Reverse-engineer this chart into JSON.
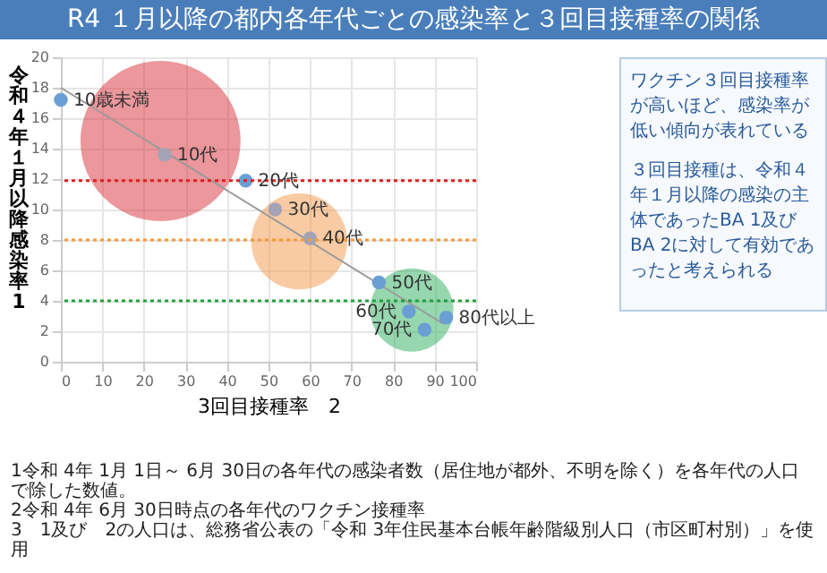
{
  "chart_data": {
    "type": "scatter",
    "title": "R4 １月以降の都内各年代ごとの感染率と３回目接種率の関係",
    "xlabel": "3回目接種率　2",
    "ylabel": "令和４年１月以降感染率 1",
    "xlim": [
      0,
      100
    ],
    "ylim": [
      0,
      20
    ],
    "xticks": [
      0,
      10,
      20,
      30,
      40,
      50,
      60,
      70,
      80,
      90,
      100
    ],
    "yticks": [
      0,
      2,
      4,
      6,
      8,
      10,
      12,
      14,
      16,
      18,
      20
    ],
    "grid": true,
    "marker": "circle",
    "series": [
      {
        "type": "bubble",
        "x": [
          24,
          57.4,
          84.5
        ],
        "values": [
          14.5,
          7.9,
          3.4
        ],
        "sizes": [
          1,
          0.36,
          0.27
        ],
        "colors": [
          "#d8303a",
          "#f4984a",
          "#2fb060"
        ]
      },
      {
        "type": "line",
        "x": [
          0,
          92
        ],
        "values": [
          18,
          2.5
        ],
        "color": "#9a9a9a",
        "marker": "none"
      },
      {
        "type": "scatter",
        "x": [
          0,
          25,
          44.5,
          51.6,
          60,
          76.6,
          83.8,
          87.6,
          92.8
        ],
        "values": [
          17.2,
          13.6,
          11.9,
          10,
          8.1,
          5.2,
          3.3,
          2.1,
          2.9
        ],
        "colors": [
          "#6a9fd4",
          "#a3a3b5",
          "#6a9fd4",
          "#a3a3b5",
          "#a3a3b5",
          "#6a9fd4",
          "#6a9fd4",
          "#6a9fd4",
          "#6a9fd4"
        ]
      }
    ],
    "ref_lines": [
      {
        "axis": "y",
        "value": 11.9,
        "color": "#e02020",
        "line_style": "dotted"
      },
      {
        "axis": "y",
        "value": 8,
        "color": "#f49a3c",
        "line_style": "dotted"
      },
      {
        "axis": "y",
        "value": 4,
        "color": "#20a040",
        "line_style": "dotted"
      }
    ],
    "annotations": [
      "ワクチン３回目接種率が高いほど、感染率が低い傾向が表れている",
      "３回目接種は、令和４年１月以降の感染の主体であったBA 1及びBA 2に対して有効であったと考えられる",
      "1令和 4年 1月 1日～ 6月 30日の各年代の感染者数（居住地が都外、不明を除く）を各年代の人口で除した数値。",
      "2令和 4年 6月 30日時点の各年代のワクチン接種率",
      "3　1及び　2の人口は、総務省公表の「令和 3年住民基本台帳年齢階級別人口（市区町村別）」を使用",
      {
        "text": "10歳未満",
        "x": 0,
        "y": 17.2
      },
      {
        "text": "10代",
        "x": 25,
        "y": 13.6
      },
      {
        "text": "20代",
        "x": 44.5,
        "y": 11.9
      },
      {
        "text": "30代",
        "x": 51.6,
        "y": 10
      },
      {
        "text": "40代",
        "x": 60,
        "y": 8.1
      },
      {
        "text": "50代",
        "x": 76.6,
        "y": 5.2
      },
      {
        "text": "60代",
        "x": 83.8,
        "y": 3.3
      },
      {
        "text": "70代",
        "x": 87.6,
        "y": 2.1
      },
      {
        "text": "80代以上",
        "x": 92.8,
        "y": 2.9
      }
    ]
  }
}
